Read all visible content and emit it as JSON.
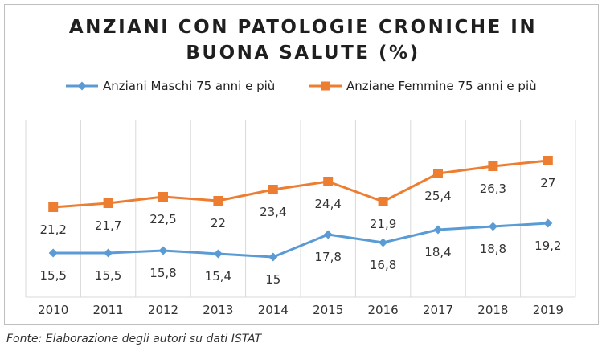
{
  "chart_data": {
    "type": "line",
    "title_lines": [
      "ANZIANI CON PATOLOGIE CRONICHE IN",
      "BUONA SALUTE (%)"
    ],
    "categories": [
      "2010",
      "2011",
      "2012",
      "2013",
      "2014",
      "2015",
      "2016",
      "2017",
      "2018",
      "2019"
    ],
    "series": [
      {
        "name": "Anziani Maschi 75 anni e più",
        "color": "#5b9bd5",
        "marker": "diamond",
        "values": [
          15.5,
          15.5,
          15.8,
          15.4,
          15,
          17.8,
          16.8,
          18.4,
          18.8,
          19.2
        ],
        "labels": [
          "15,5",
          "15,5",
          "15,8",
          "15,4",
          "15",
          "17,8",
          "16,8",
          "18,4",
          "18,8",
          "19,2"
        ]
      },
      {
        "name": "Anziane Femmine 75 anni e più",
        "color": "#ed7d31",
        "marker": "square",
        "values": [
          21.2,
          21.7,
          22.5,
          22,
          23.4,
          24.4,
          21.9,
          25.4,
          26.3,
          27
        ],
        "labels": [
          "21,2",
          "21,7",
          "22,5",
          "22",
          "23,4",
          "24,4",
          "21,9",
          "25,4",
          "26,3",
          "27"
        ]
      }
    ],
    "xlabel": "",
    "ylabel": "",
    "ylim": [
      10,
      32
    ],
    "grid": "vertical",
    "legend_position": "top"
  },
  "source_note": "Fonte: Elaborazione degli autori su dati ISTAT"
}
